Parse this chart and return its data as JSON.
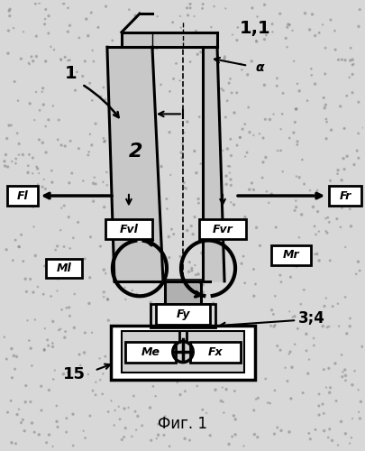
{
  "bg_color": "#d8d8d8",
  "title": "Фиг. 1",
  "labels": {
    "1_1": "1,1",
    "alpha": "α",
    "1": "1",
    "2": "2",
    "Fl": "Fl",
    "Fr": "Fr",
    "Fvl": "Fvl",
    "Fvr": "Fvr",
    "Ml": "Ml",
    "Mr": "Mr",
    "Fy": "Fy",
    "Me": "Me",
    "Fx": "Fx",
    "3_4": "3;4",
    "15": "15"
  }
}
